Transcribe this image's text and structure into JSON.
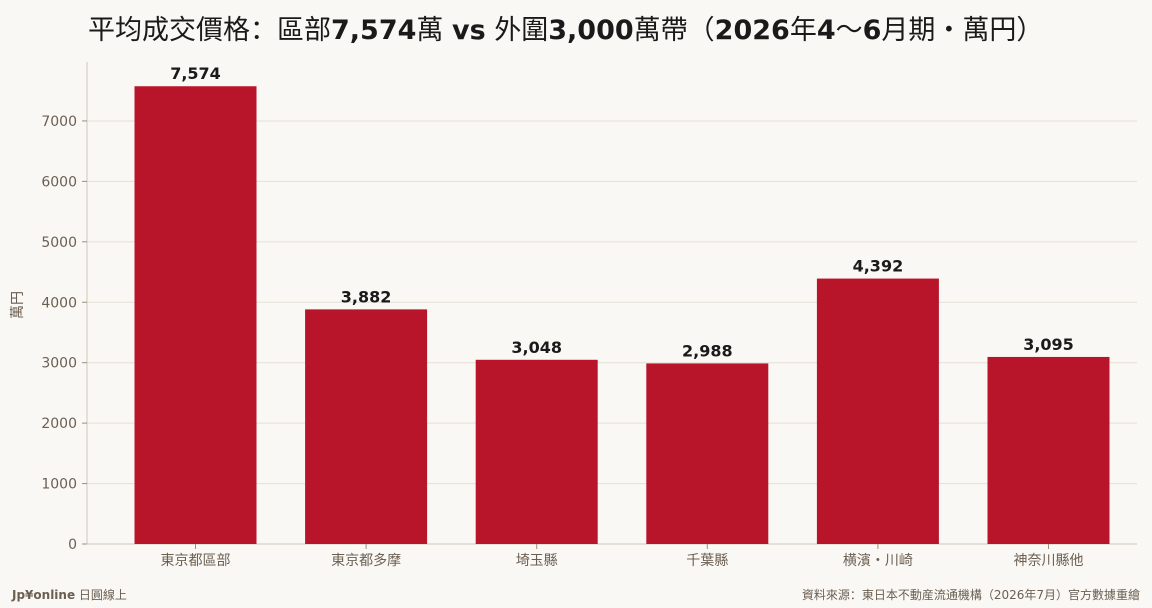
{
  "title": {
    "part1": "平均成交價格：區部",
    "part2": "7,574",
    "part3": "萬 ",
    "part4": "vs",
    "part5": " 外圍",
    "part6": "3,000",
    "part7": "萬帶（",
    "part8": "2026",
    "part9": "年",
    "part10": "4",
    "part11": "〜",
    "part12": "6",
    "part13": "月期・萬円）"
  },
  "footer": {
    "brand": "Jp¥online",
    "brand_suffix": " 日圓線上",
    "source": "資料來源：東日本不動産流通機構（2026年7月）官方數據重繪"
  },
  "chart_data": {
    "type": "bar",
    "categories": [
      "東京都區部",
      "東京都多摩",
      "埼玉縣",
      "千葉縣",
      "横濱・川崎",
      "神奈川縣他"
    ],
    "values": [
      7574,
      3882,
      3048,
      2988,
      4392,
      3095
    ],
    "value_labels": [
      "7,574",
      "3,882",
      "3,048",
      "2,988",
      "4,392",
      "3,095"
    ],
    "ylabel": "萬円",
    "xlabel": "",
    "ylim": [
      0,
      8000
    ],
    "yticks": [
      0,
      1000,
      2000,
      3000,
      4000,
      5000,
      6000,
      7000
    ],
    "grid": true,
    "bar_color": "#b8152b"
  }
}
